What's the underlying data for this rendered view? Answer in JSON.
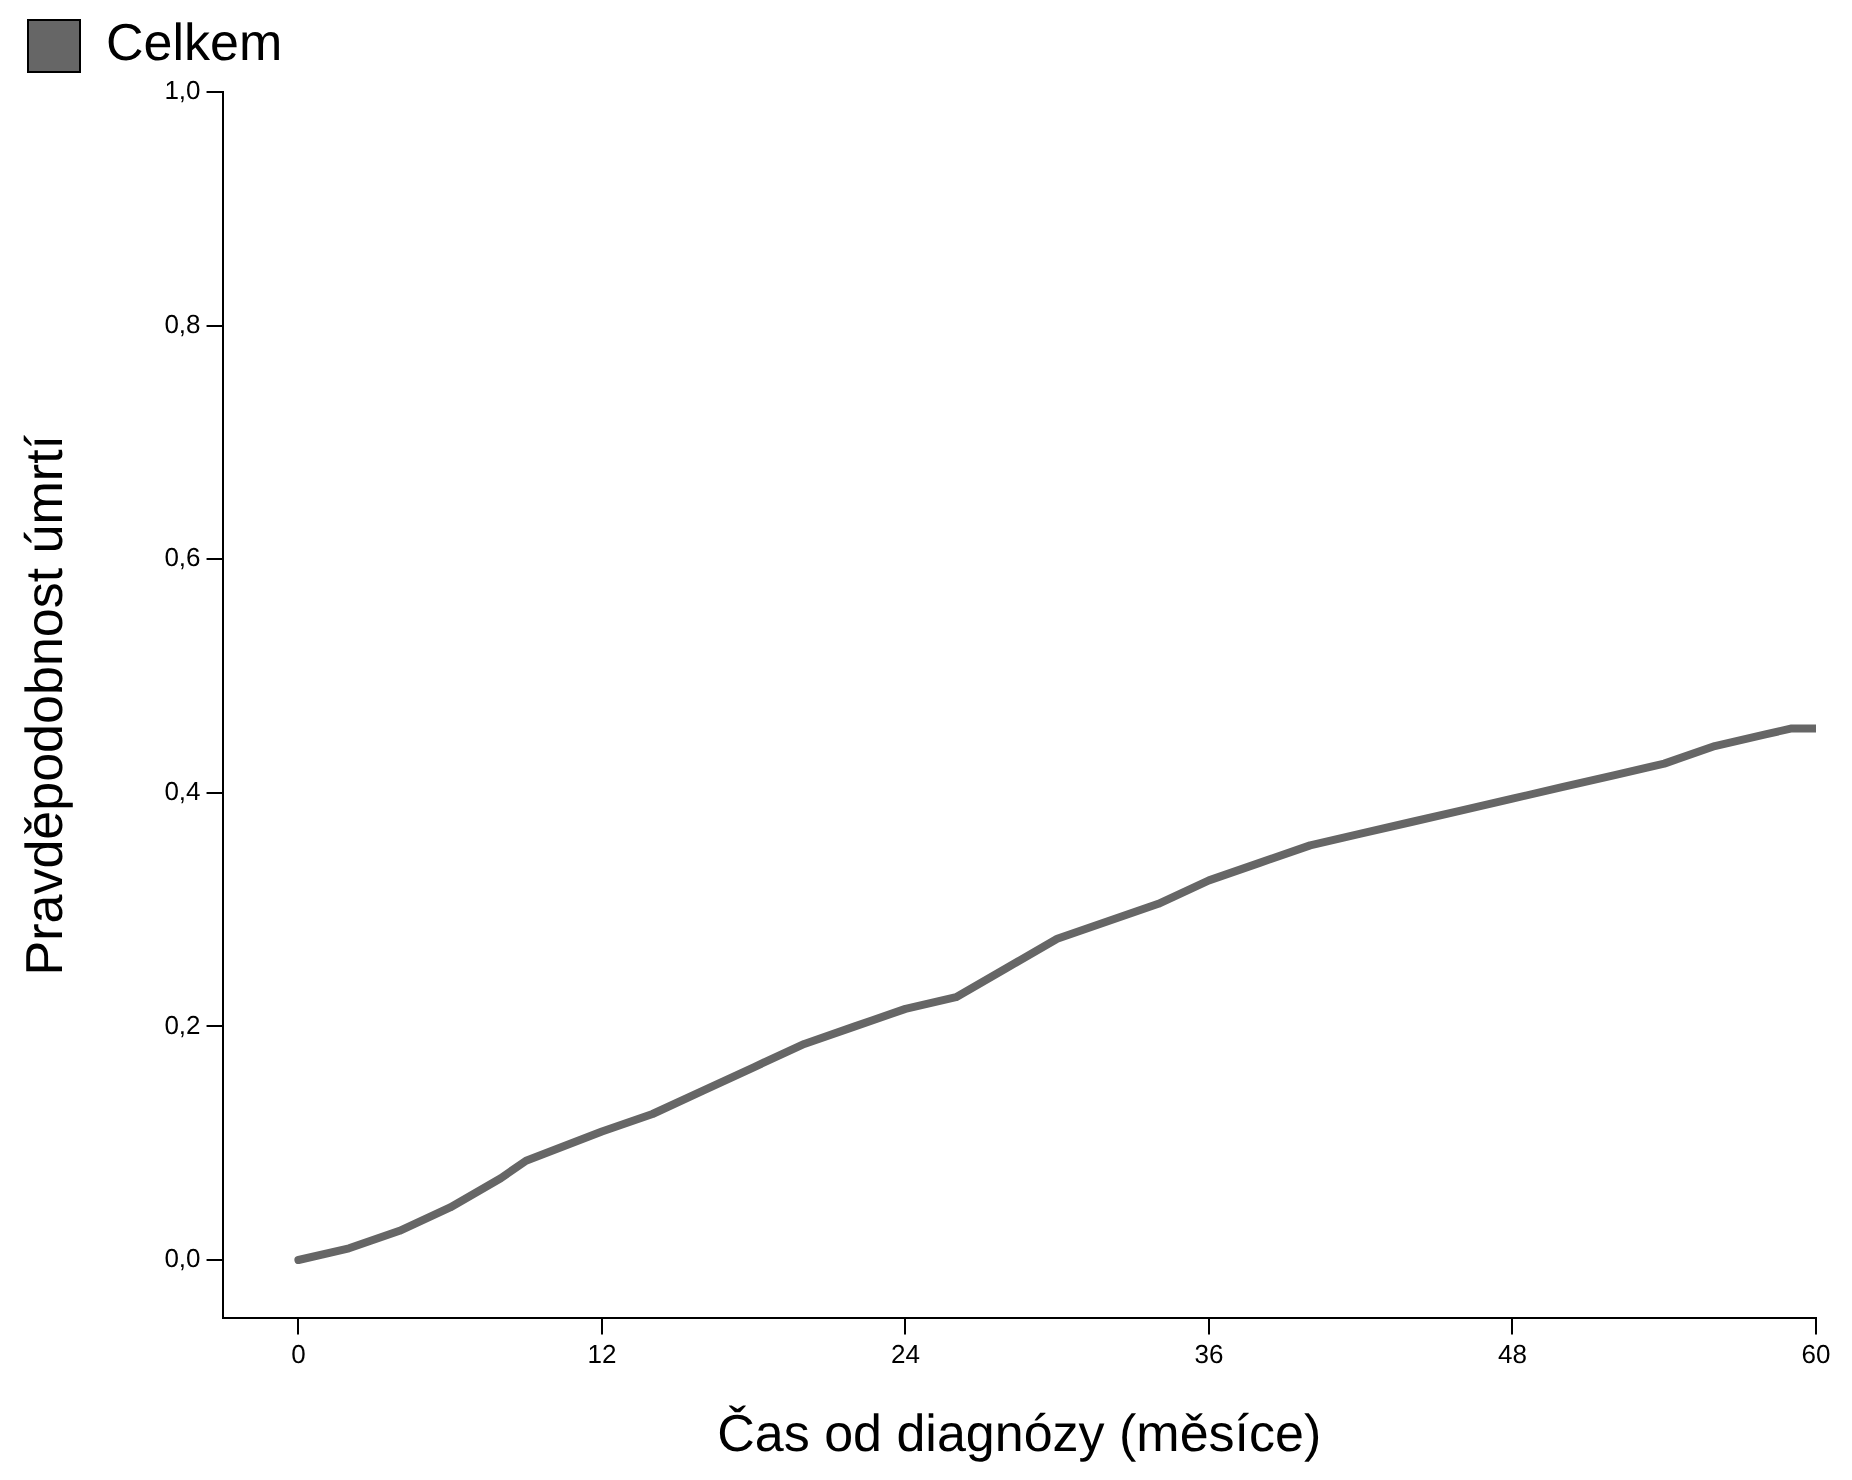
{
  "chart_data": {
    "type": "line",
    "xlabel": "Čas od diagnózy (měsíce)",
    "ylabel": "Pravděpodobnost úmrtí",
    "xlim": [
      -3,
      60
    ],
    "ylim": [
      -0.05,
      1.0
    ],
    "xticks": [
      0,
      12,
      24,
      36,
      48,
      60
    ],
    "yticks": [
      {
        "value": 0,
        "label": "0,0"
      },
      {
        "value": 0.2,
        "label": "0,2"
      },
      {
        "value": 0.4,
        "label": "0,4"
      },
      {
        "value": 0.6,
        "label": "0,6"
      },
      {
        "value": 0.8,
        "label": "0,8"
      },
      {
        "value": 1.0,
        "label": "1,0"
      }
    ],
    "grid": false,
    "legend": "top left",
    "marker": "none",
    "line_style": "solid",
    "series": [
      {
        "name": "Celkem",
        "color": "#666666",
        "x": [
          0,
          2,
          4,
          6,
          8,
          9,
          12,
          14,
          16,
          18,
          20,
          22,
          24,
          26,
          28,
          30,
          32,
          34,
          36,
          38,
          40,
          42,
          44,
          46,
          48,
          50,
          52,
          54,
          56,
          58,
          59,
          60
        ],
        "values": [
          0,
          0.01,
          0.025,
          0.045,
          0.07,
          0.085,
          0.11,
          0.125,
          0.145,
          0.165,
          0.185,
          0.2,
          0.215,
          0.225,
          0.25,
          0.275,
          0.29,
          0.305,
          0.325,
          0.34,
          0.355,
          0.365,
          0.375,
          0.385,
          0.395,
          0.405,
          0.415,
          0.425,
          0.44,
          0.45,
          0.455,
          0.455
        ]
      }
    ]
  }
}
